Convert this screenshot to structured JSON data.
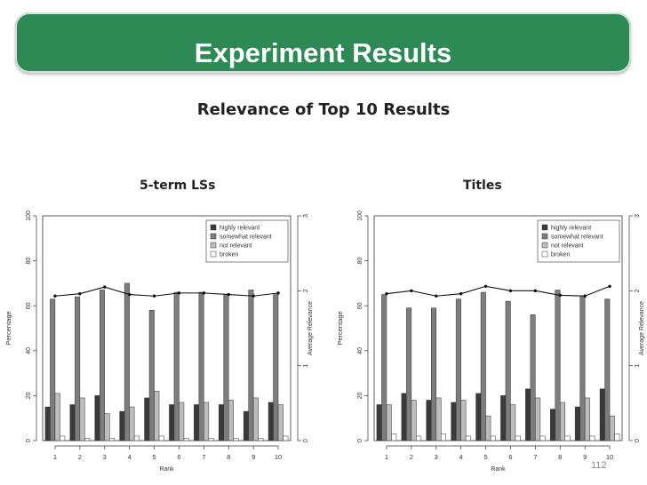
{
  "slide": {
    "title": "Experiment Results",
    "subtitle": "Relevance of Top 10 Results",
    "page_number": "112"
  },
  "colors": {
    "banner": "#2d8a55",
    "highly": "#3a3a3a",
    "somewhat": "#7d7d7d",
    "not": "#bdbdbd",
    "broken": "#ffffff"
  },
  "chart_data": [
    {
      "type": "bar",
      "title": "5-term LSs",
      "xlabel": "Rank",
      "ylabel": "Percentage",
      "y2label": "Average Relevance",
      "categories": [
        "1",
        "2",
        "3",
        "4",
        "5",
        "6",
        "7",
        "8",
        "9",
        "10"
      ],
      "ylim": [
        0,
        100
      ],
      "yticks": [
        "0",
        "20",
        "40",
        "60",
        "80",
        "100"
      ],
      "y2lim": [
        0,
        3
      ],
      "y2ticks": [
        "0",
        "1",
        "2",
        "3"
      ],
      "legend_position": "top-right",
      "series": [
        {
          "name": "highly relevant",
          "values": [
            15,
            16,
            20,
            13,
            19,
            16,
            16,
            16,
            13,
            17
          ]
        },
        {
          "name": "somewhat relevant",
          "values": [
            63,
            64,
            67,
            70,
            58,
            66,
            66,
            65,
            67,
            65
          ]
        },
        {
          "name": "not relevant",
          "values": [
            21,
            19,
            12,
            15,
            22,
            17,
            17,
            18,
            19,
            16
          ]
        },
        {
          "name": "broken",
          "values": [
            2,
            1,
            1,
            2,
            2,
            1,
            1,
            1,
            1,
            2
          ]
        }
      ],
      "line": {
        "name": "Average Relevance",
        "values": [
          1.93,
          1.96,
          2.05,
          1.95,
          1.93,
          1.97,
          1.97,
          1.95,
          1.93,
          1.97
        ]
      }
    },
    {
      "type": "bar",
      "title": "Titles",
      "xlabel": "Rank",
      "ylabel": "Percentage",
      "y2label": "Average Relevance",
      "categories": [
        "1",
        "2",
        "3",
        "4",
        "5",
        "6",
        "7",
        "8",
        "9",
        "10"
      ],
      "ylim": [
        0,
        100
      ],
      "yticks": [
        "0",
        "20",
        "40",
        "60",
        "80",
        "100"
      ],
      "y2lim": [
        0,
        3
      ],
      "y2ticks": [
        "0",
        "1",
        "2",
        "3"
      ],
      "legend_position": "top-right",
      "series": [
        {
          "name": "highly relevant",
          "values": [
            16,
            21,
            18,
            17,
            21,
            20,
            23,
            14,
            15,
            23
          ]
        },
        {
          "name": "somewhat relevant",
          "values": [
            65,
            59,
            59,
            63,
            66,
            62,
            56,
            67,
            64,
            63
          ]
        },
        {
          "name": "not relevant",
          "values": [
            16,
            18,
            19,
            18,
            11,
            16,
            19,
            17,
            19,
            11
          ]
        },
        {
          "name": "broken",
          "values": [
            3,
            2,
            3,
            2,
            2,
            2,
            2,
            2,
            2,
            3
          ]
        }
      ],
      "line": {
        "name": "Average Relevance",
        "values": [
          1.96,
          2.0,
          1.93,
          1.96,
          2.06,
          2.0,
          2.0,
          1.94,
          1.93,
          2.06
        ]
      }
    }
  ]
}
